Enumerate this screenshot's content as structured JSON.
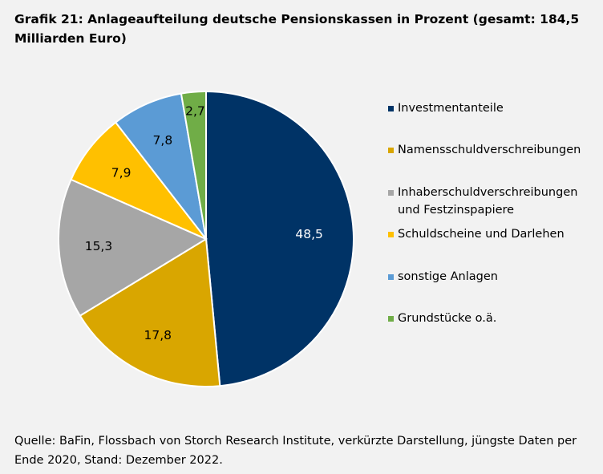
{
  "chart_data": {
    "type": "pie",
    "title": "Grafik 21:  Anlageaufteilung deutsche Pensionskassen in Prozent (gesamt: 184,5 Milliarden Euro)",
    "slices": [
      {
        "label": "Investmentanteile",
        "value": 48.5,
        "display": "48,5",
        "color": "#003366",
        "label_color": "#ffffff"
      },
      {
        "label": "Namensschuldverschreibungen",
        "value": 17.8,
        "display": "17,8",
        "color": "#d9a600",
        "label_color": "#000000"
      },
      {
        "label": "Inhaberschuldverschreibungen und Festzinspapiere",
        "value": 15.3,
        "display": "15,3",
        "color": "#a6a6a6",
        "label_color": "#000000"
      },
      {
        "label": "Schuldscheine und Darlehen",
        "value": 7.9,
        "display": "7,9",
        "color": "#ffc000",
        "label_color": "#000000"
      },
      {
        "label": "sonstige Anlagen",
        "value": 7.8,
        "display": "7,8",
        "color": "#5b9bd5",
        "label_color": "#000000"
      },
      {
        "label": "Grundstücke o.ä.",
        "value": 2.7,
        "display": "2,7",
        "color": "#70ad47",
        "label_color": "#000000"
      }
    ],
    "legend_position": "right",
    "source": "Quelle: BaFin, Flossbach von Storch Research Institute, verkürzte Darstellung, jüngste Daten per Ende 2020, Stand: Dezember 2022."
  }
}
